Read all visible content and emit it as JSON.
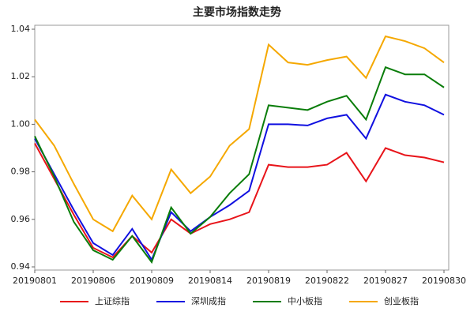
{
  "chart_data": {
    "type": "line",
    "title": "主要市场指数走势",
    "categories": [
      "20190801",
      null,
      null,
      "20190806",
      null,
      null,
      "20190809",
      null,
      null,
      "20190814",
      null,
      null,
      "20190819",
      null,
      null,
      "20190822",
      null,
      null,
      "20190827",
      null,
      null,
      "20190830"
    ],
    "series": [
      {
        "name": "上证综指",
        "color": "#e8141a",
        "values": [
          0.992,
          0.977,
          0.962,
          0.948,
          0.944,
          0.953,
          0.946,
          0.96,
          0.954,
          0.958,
          0.96,
          0.963,
          0.983,
          0.982,
          0.982,
          0.983,
          0.988,
          0.976,
          0.99,
          0.987,
          0.986,
          0.984
        ]
      },
      {
        "name": "深圳成指",
        "color": "#1010e0",
        "values": [
          0.994,
          0.979,
          0.964,
          0.95,
          0.945,
          0.956,
          0.943,
          0.963,
          0.955,
          0.961,
          0.966,
          0.972,
          1.0,
          1.0,
          0.9995,
          1.0025,
          1.004,
          0.994,
          1.0125,
          1.0095,
          1.008,
          1.004
        ]
      },
      {
        "name": "中小板指",
        "color": "#0a7d0a",
        "values": [
          0.995,
          0.978,
          0.959,
          0.947,
          0.943,
          0.953,
          0.942,
          0.965,
          0.954,
          0.961,
          0.971,
          0.979,
          1.008,
          1.007,
          1.006,
          1.0095,
          1.012,
          1.002,
          1.024,
          1.021,
          1.021,
          1.0155
        ]
      },
      {
        "name": "创业板指",
        "color": "#f5a800",
        "values": [
          1.002,
          0.991,
          0.975,
          0.96,
          0.955,
          0.97,
          0.96,
          0.981,
          0.971,
          0.978,
          0.991,
          0.998,
          1.0335,
          1.026,
          1.025,
          1.027,
          1.0285,
          1.0195,
          1.037,
          1.035,
          1.032,
          1.026
        ]
      }
    ],
    "ylim": [
      0.94,
      1.04
    ],
    "yticks": [
      0.94,
      0.96,
      0.98,
      {
        "value": 1.0,
        "label": "1.00"
      },
      1.02,
      1.04
    ],
    "legend": "bottom"
  }
}
